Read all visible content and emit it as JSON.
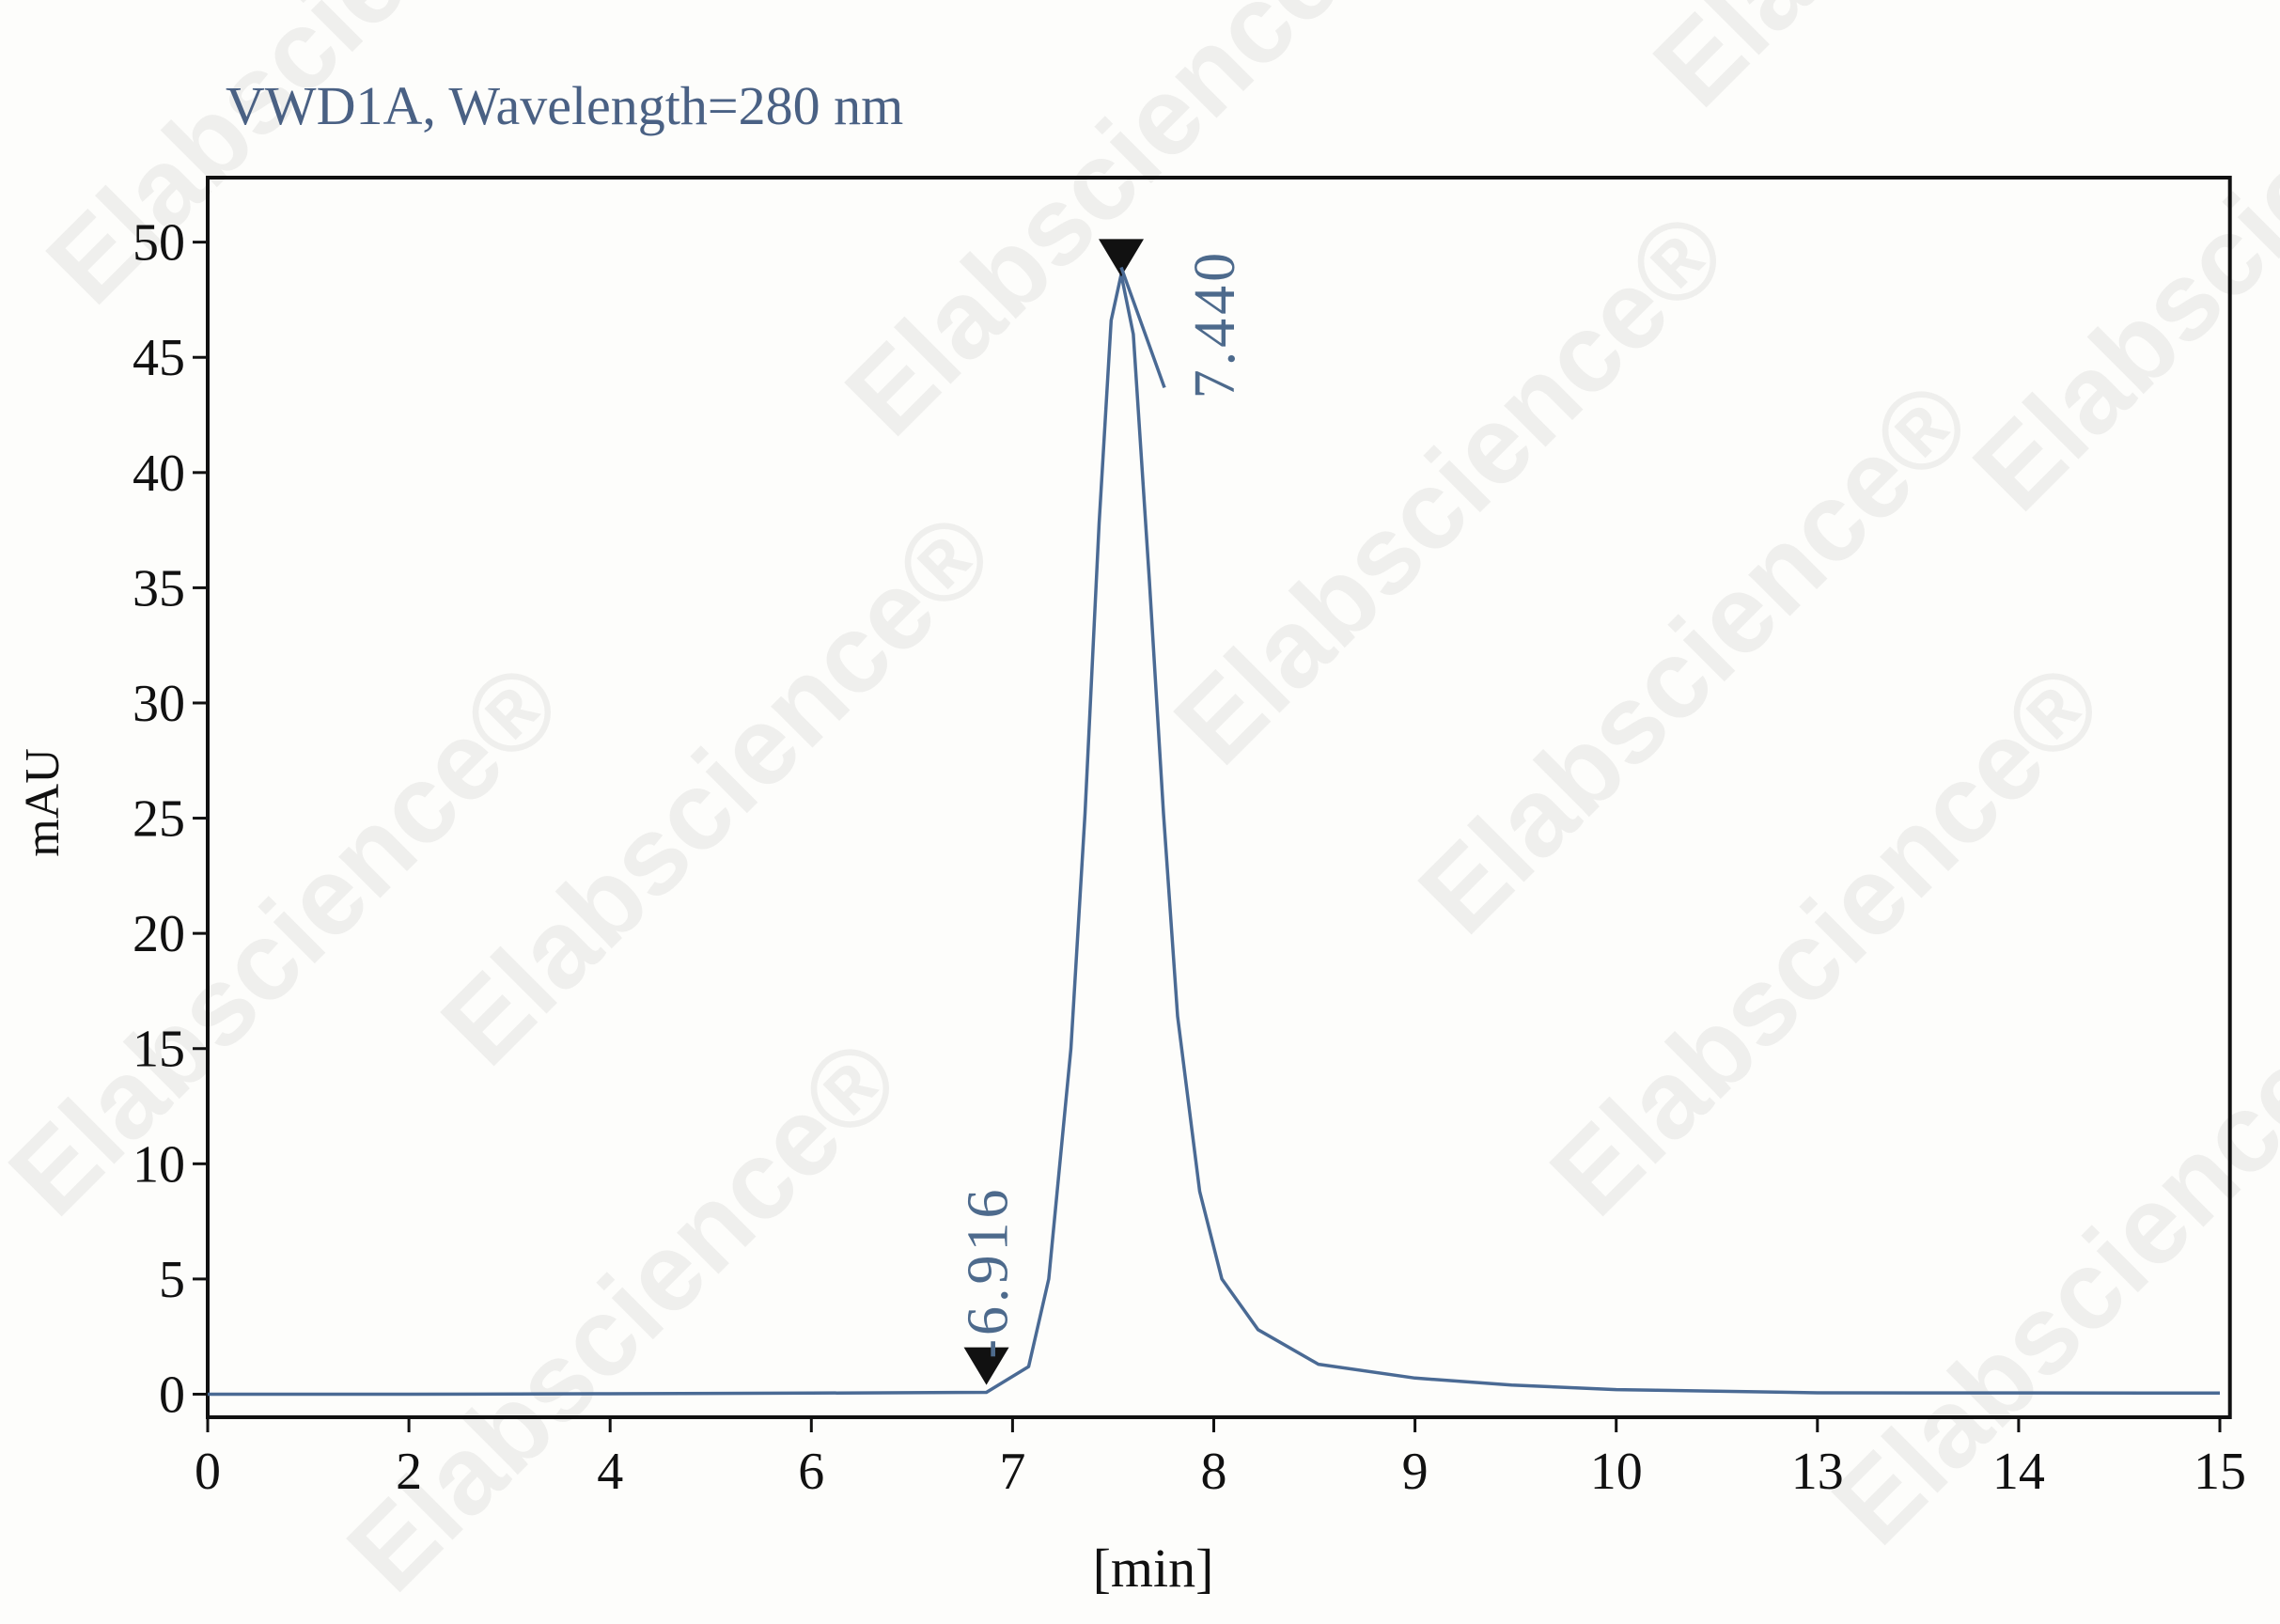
{
  "chart_data": {
    "type": "line",
    "title": "VWD1A, Wavelength=280 nm",
    "x_label": "[min]",
    "y_label": "mAU",
    "watermark": "Elabscience®",
    "xlim": [
      0,
      15.05
    ],
    "ylim": [
      -1,
      52.8
    ],
    "xticks": [
      0,
      2,
      4,
      6,
      7,
      8,
      9,
      10,
      13,
      14,
      15
    ],
    "yticks": [
      0,
      5,
      10,
      15,
      20,
      25,
      30,
      35,
      40,
      45,
      50
    ],
    "series": [
      {
        "color": "#4a6a94",
        "x": [
          0,
          2,
          4,
          6,
          6.87,
          7.08,
          7.18,
          7.29,
          7.36,
          7.43,
          7.49,
          7.54,
          7.6,
          7.68,
          7.75,
          7.82,
          7.93,
          8.04,
          8.22,
          8.52,
          9.0,
          9.48,
          10,
          13,
          15
        ],
        "values": [
          0,
          0,
          0.02,
          0.05,
          0.08,
          1.2,
          5,
          15,
          25.2,
          37.8,
          46.6,
          48.6,
          46,
          35.3,
          25.2,
          16.4,
          8.8,
          5,
          2.8,
          1.3,
          0.7,
          0.4,
          0.2,
          0.06,
          0.05
        ]
      }
    ],
    "annotations": [
      {
        "text": "-6.916",
        "x": 6.87,
        "y": 0.4
      },
      {
        "text": "7.440",
        "x": 7.54,
        "y": 48.5
      }
    ]
  }
}
